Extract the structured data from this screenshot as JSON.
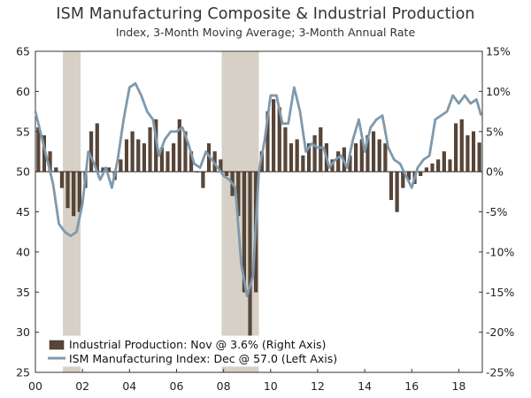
{
  "chart_data": {
    "type": "bar+line",
    "title": "ISM Manufacturing Composite & Industrial Production",
    "subtitle": "Index, 3-Month Moving Average; 3-Month Annual Rate",
    "x_ticks": [
      "00",
      "02",
      "04",
      "06",
      "08",
      "10",
      "12",
      "14",
      "16",
      "18"
    ],
    "x_tick_years": [
      2000,
      2002,
      2004,
      2006,
      2008,
      2010,
      2012,
      2014,
      2016,
      2018
    ],
    "xlim": [
      2000.0,
      2019.0
    ],
    "left_axis": {
      "ylim": [
        25,
        65
      ],
      "ticks": [
        "65",
        "60",
        "55",
        "50",
        "45",
        "40",
        "35",
        "30",
        "25"
      ],
      "tick_values": [
        65,
        60,
        55,
        50,
        45,
        40,
        35,
        30,
        25
      ]
    },
    "right_axis": {
      "ylim": [
        -25,
        15
      ],
      "ticks": [
        "15%",
        "10%",
        "5%",
        "0%",
        "-5%",
        "-10%",
        "-15%",
        "-20%",
        "-25%"
      ],
      "tick_values": [
        15,
        10,
        5,
        0,
        -5,
        -10,
        -15,
        -20,
        -25
      ]
    },
    "recessions": [
      [
        2001.17,
        2001.92
      ],
      [
        2007.92,
        2009.5
      ]
    ],
    "series": [
      {
        "name": "Industrial Production: Nov @ 3.6% (Right Axis)",
        "type": "bar",
        "axis": "right",
        "color": "#5a4638",
        "x": [
          2000.0,
          2000.25,
          2000.5,
          2000.75,
          2001.0,
          2001.25,
          2001.5,
          2001.75,
          2002.0,
          2002.25,
          2002.5,
          2002.75,
          2003.0,
          2003.25,
          2003.5,
          2003.75,
          2004.0,
          2004.25,
          2004.5,
          2004.75,
          2005.0,
          2005.25,
          2005.5,
          2005.75,
          2006.0,
          2006.25,
          2006.5,
          2006.75,
          2007.0,
          2007.25,
          2007.5,
          2007.75,
          2008.0,
          2008.25,
          2008.5,
          2008.75,
          2009.0,
          2009.25,
          2009.5,
          2009.75,
          2010.0,
          2010.25,
          2010.5,
          2010.75,
          2011.0,
          2011.25,
          2011.5,
          2011.75,
          2012.0,
          2012.25,
          2012.5,
          2012.75,
          2013.0,
          2013.25,
          2013.5,
          2013.75,
          2014.0,
          2014.25,
          2014.5,
          2014.75,
          2015.0,
          2015.25,
          2015.5,
          2015.75,
          2016.0,
          2016.25,
          2016.5,
          2016.75,
          2017.0,
          2017.25,
          2017.5,
          2017.75,
          2018.0,
          2018.25,
          2018.5,
          2018.75
        ],
        "values": [
          5.5,
          4.5,
          2.5,
          0.5,
          -2.0,
          -4.5,
          -5.5,
          -5.0,
          -2.0,
          5.0,
          6.0,
          0.5,
          0.5,
          -1.0,
          1.5,
          4.0,
          5.0,
          4.0,
          3.5,
          5.5,
          6.5,
          3.0,
          2.5,
          3.5,
          6.5,
          5.0,
          2.5,
          0.0,
          -2.0,
          3.5,
          2.5,
          1.5,
          -0.5,
          -3.0,
          -5.5,
          -15.0,
          -20.5,
          -15.0,
          2.5,
          7.5,
          9.0,
          8.0,
          5.5,
          3.5,
          4.0,
          2.0,
          3.5,
          4.5,
          5.5,
          3.5,
          1.5,
          2.5,
          3.0,
          2.0,
          3.5,
          4.0,
          4.5,
          5.0,
          4.0,
          3.5,
          -3.5,
          -5.0,
          -2.0,
          -1.0,
          -1.5,
          -0.5,
          0.5,
          1.0,
          1.5,
          2.5,
          1.5,
          6.0,
          6.5,
          4.5,
          5.0,
          3.6
        ]
      },
      {
        "name": "ISM Manufacturing Index: Dec @ 57.0 (Left Axis)",
        "type": "line",
        "axis": "left",
        "color": "#7e99ad",
        "x": [
          2000.0,
          2000.25,
          2000.5,
          2000.75,
          2001.0,
          2001.25,
          2001.5,
          2001.75,
          2002.0,
          2002.25,
          2002.5,
          2002.75,
          2003.0,
          2003.25,
          2003.5,
          2003.75,
          2004.0,
          2004.25,
          2004.5,
          2004.75,
          2005.0,
          2005.25,
          2005.5,
          2005.75,
          2006.0,
          2006.25,
          2006.5,
          2006.75,
          2007.0,
          2007.25,
          2007.5,
          2007.75,
          2008.0,
          2008.25,
          2008.5,
          2008.75,
          2009.0,
          2009.25,
          2009.5,
          2009.75,
          2010.0,
          2010.25,
          2010.5,
          2010.75,
          2011.0,
          2011.25,
          2011.5,
          2011.75,
          2012.0,
          2012.25,
          2012.5,
          2012.75,
          2013.0,
          2013.25,
          2013.5,
          2013.75,
          2014.0,
          2014.25,
          2014.5,
          2014.75,
          2015.0,
          2015.25,
          2015.5,
          2015.75,
          2016.0,
          2016.25,
          2016.5,
          2016.75,
          2017.0,
          2017.25,
          2017.5,
          2017.75,
          2018.0,
          2018.25,
          2018.5,
          2018.75,
          2018.95
        ],
        "values": [
          57.5,
          54.5,
          51.5,
          48.5,
          43.5,
          42.5,
          42.0,
          42.5,
          46.0,
          52.5,
          51.0,
          49.0,
          50.5,
          48.0,
          51.5,
          56.5,
          60.5,
          61.0,
          59.5,
          57.5,
          56.5,
          52.0,
          54.0,
          55.0,
          55.0,
          55.5,
          53.5,
          51.0,
          50.5,
          52.5,
          51.5,
          50.5,
          49.5,
          49.0,
          48.0,
          38.5,
          34.5,
          37.0,
          50.0,
          54.0,
          59.5,
          59.5,
          56.0,
          56.0,
          60.5,
          57.5,
          52.5,
          53.5,
          53.0,
          53.0,
          50.5,
          51.5,
          52.0,
          50.5,
          54.0,
          56.5,
          52.5,
          55.5,
          56.5,
          57.0,
          53.0,
          51.5,
          51.0,
          49.5,
          48.0,
          50.5,
          51.5,
          52.0,
          56.5,
          57.0,
          57.5,
          59.5,
          58.5,
          59.5,
          58.5,
          59.0,
          57.0
        ]
      }
    ],
    "legend": {
      "placement": "bottom-left",
      "entries": [
        "Industrial Production: Nov @ 3.6% (Right Axis)",
        "ISM Manufacturing Index: Dec @ 57.0 (Left Axis)"
      ]
    }
  }
}
